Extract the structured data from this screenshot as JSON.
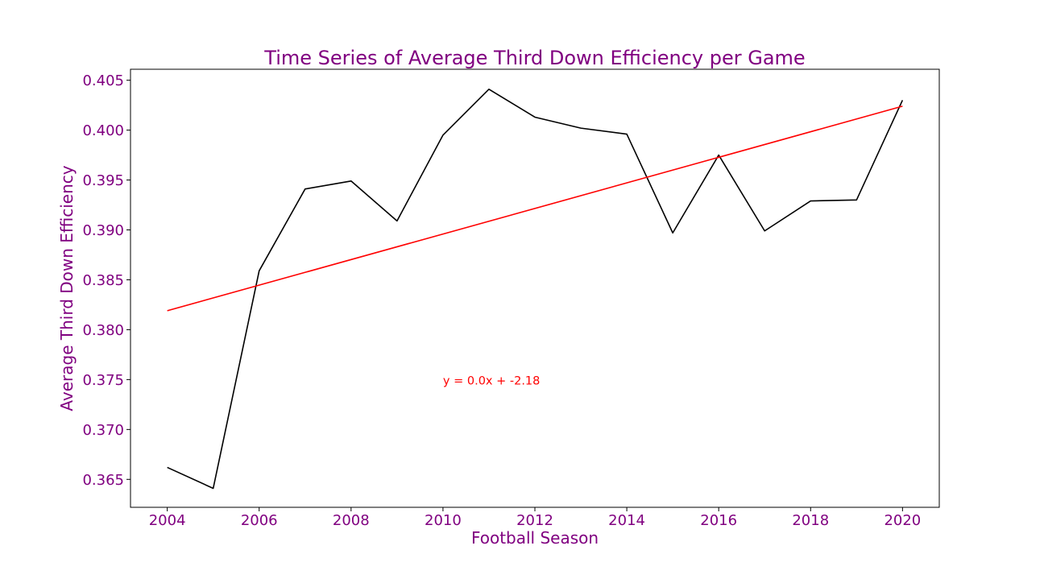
{
  "chart_data": {
    "type": "line",
    "title": "Time Series of Average Third Down Efficiency per Game",
    "xlabel": "Football Season",
    "ylabel": "Average Third Down Efficiency",
    "xlim": [
      2003.2,
      2020.8
    ],
    "ylim": [
      0.3622,
      0.4061
    ],
    "x_ticks": [
      2004,
      2006,
      2008,
      2010,
      2012,
      2014,
      2016,
      2018,
      2020
    ],
    "x_tick_labels": [
      "2004",
      "2006",
      "2008",
      "2010",
      "2012",
      "2014",
      "2016",
      "2018",
      "2020"
    ],
    "y_ticks": [
      0.365,
      0.37,
      0.375,
      0.38,
      0.385,
      0.39,
      0.395,
      0.4,
      0.405
    ],
    "y_tick_labels": [
      "0.365",
      "0.370",
      "0.375",
      "0.380",
      "0.385",
      "0.390",
      "0.395",
      "0.400",
      "0.405"
    ],
    "grid": false,
    "series": [
      {
        "values": [
          [
            2004,
            0.3662
          ],
          [
            2005,
            0.3641
          ],
          [
            2006,
            0.3859
          ],
          [
            2007,
            0.3941
          ],
          [
            2008,
            0.3949
          ],
          [
            2009,
            0.3909
          ],
          [
            2010,
            0.3995
          ],
          [
            2011,
            0.4041
          ],
          [
            2012,
            0.4013
          ],
          [
            2013,
            0.4002
          ],
          [
            2014,
            0.3996
          ],
          [
            2015,
            0.3897
          ],
          [
            2016,
            0.3975
          ],
          [
            2017,
            0.3899
          ],
          [
            2018,
            0.3929
          ],
          [
            2019,
            0.393
          ],
          [
            2020,
            0.403
          ]
        ],
        "color": "#000000"
      },
      {
        "values": [
          [
            2004,
            0.3819
          ],
          [
            2020,
            0.4024
          ]
        ],
        "color": "#ff0000"
      }
    ],
    "annotations": [
      {
        "text": "y = 0.0x + -2.18",
        "x": 2010,
        "y": 0.375,
        "color": "#ff0000"
      }
    ],
    "colors": {
      "text": "#800080",
      "axes": "#000000"
    }
  }
}
